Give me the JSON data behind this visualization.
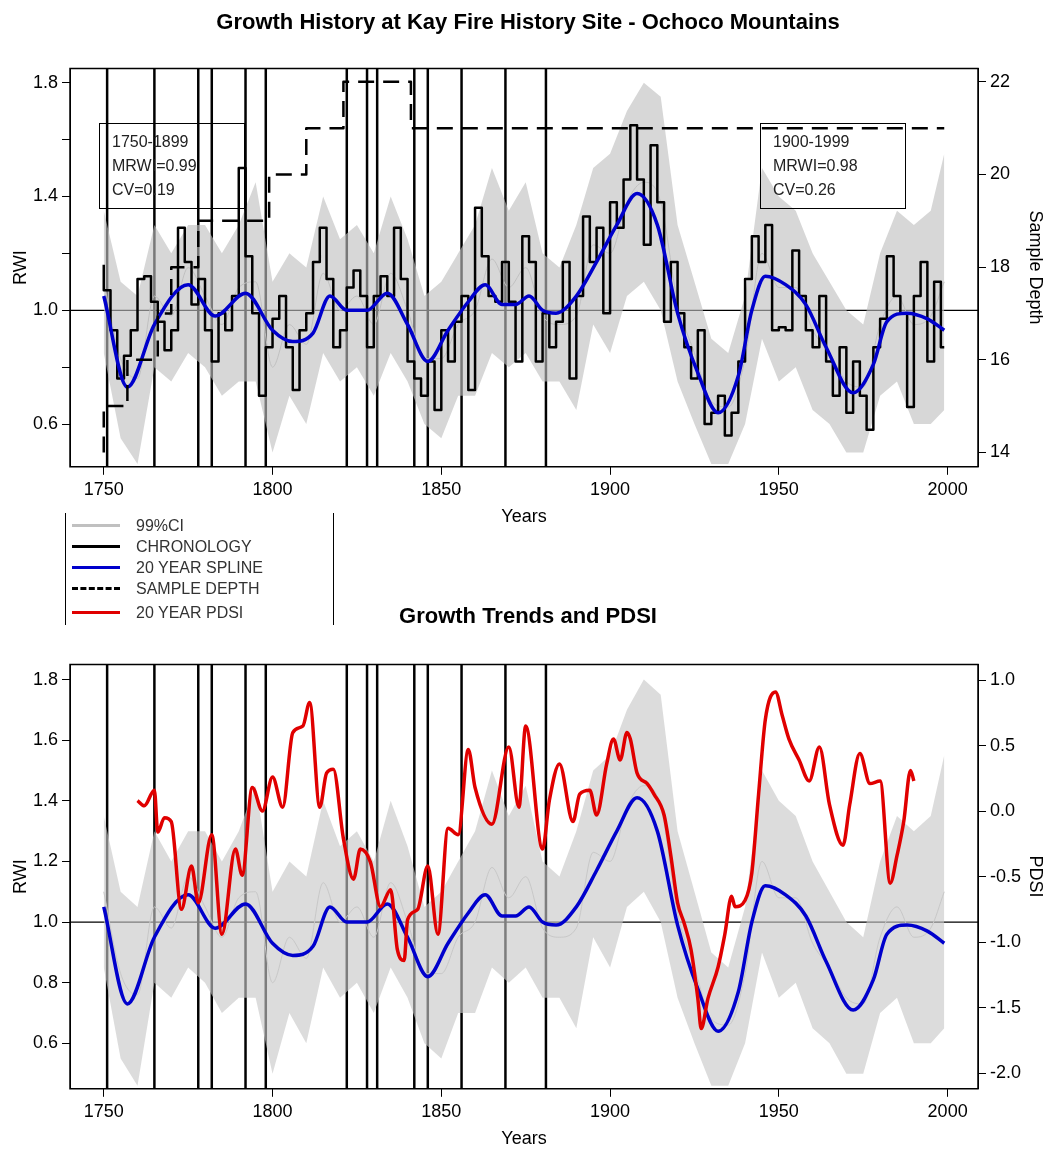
{
  "chart_data": [
    {
      "type": "line",
      "title": "Growth History at Kay Fire History Site - Ochoco Mountains",
      "xlabel": "Years",
      "ylabel": "RWI",
      "y2label": "Sample Depth",
      "annotations": [
        "1750-1899\nMRWI=0.99\nCV=0.19",
        "1900-1999\nMRWI=0.98\nCV=0.26"
      ],
      "xlim": [
        1740,
        2009
      ],
      "xticks": [
        1750,
        1800,
        1850,
        1900,
        1950,
        2000
      ],
      "ylim": [
        0.45,
        1.85
      ],
      "yticks": [
        0.6,
        {
          "value": 0.8,
          "label": null
        },
        {
          "value": 1,
          "label": "1.0"
        },
        {
          "value": 1.2,
          "label": null
        },
        1.4,
        {
          "value": 1.6,
          "label": null
        },
        1.8
      ],
      "y2lim": [
        13.69,
        22.29
      ],
      "y2ticks": [
        14,
        16,
        18,
        20,
        22
      ],
      "legend": "bottom left",
      "ref_lines": [
        {
          "axis": "y",
          "value": 1
        },
        {
          "axis": "x",
          "value": 1751
        },
        {
          "axis": "x",
          "value": 1765
        },
        {
          "axis": "x",
          "value": 1778
        },
        {
          "axis": "x",
          "value": 1782
        },
        {
          "axis": "x",
          "value": 1792
        },
        {
          "axis": "x",
          "value": 1798
        },
        {
          "axis": "x",
          "value": 1822
        },
        {
          "axis": "x",
          "value": 1828
        },
        {
          "axis": "x",
          "value": 1831
        },
        {
          "axis": "x",
          "value": 1842
        },
        {
          "axis": "x",
          "value": 1846
        },
        {
          "axis": "x",
          "value": 1856
        },
        {
          "axis": "x",
          "value": 1869
        },
        {
          "axis": "x",
          "value": 1881
        }
      ],
      "series": [
        {
          "name": "99%CI",
          "color": "#c0c0c0",
          "x": [
            1750,
            1755,
            1760,
            1765,
            1770,
            1775,
            1780,
            1785,
            1790,
            1795,
            1800,
            1805,
            1810,
            1815,
            1820,
            1825,
            1830,
            1835,
            1840,
            1845,
            1850,
            1855,
            1860,
            1865,
            1870,
            1875,
            1880,
            1885,
            1890,
            1895,
            1900,
            1905,
            1910,
            1915,
            1920,
            1925,
            1930,
            1935,
            1940,
            1945,
            1950,
            1955,
            1960,
            1965,
            1970,
            1975,
            1980,
            1985,
            1990,
            1995,
            1999
          ],
          "values": [
            1.1,
            0.83,
            0.76,
            1.05,
            0.98,
            1.15,
            1.05,
            0.95,
            1.08,
            1.1,
            0.8,
            0.95,
            0.88,
            1.13,
            1.0,
            1.05,
            0.95,
            1.13,
            1.0,
            0.83,
            0.83,
            0.95,
            1.0,
            1.18,
            1.08,
            1.15,
            0.98,
            0.95,
            0.98,
            1.23,
            1.2,
            1.38,
            1.45,
            1.38,
            1.03,
            0.85,
            0.68,
            0.66,
            0.83,
            1.2,
            1.08,
            1.08,
            0.93,
            0.85,
            0.75,
            0.73,
            0.95,
            1.05,
            0.95,
            0.98,
            1.1
          ],
          "lower": [
            0.85,
            0.55,
            0.46,
            0.8,
            0.75,
            0.85,
            0.8,
            0.7,
            0.75,
            0.75,
            0.5,
            0.7,
            0.6,
            0.85,
            0.75,
            0.8,
            0.7,
            0.85,
            0.75,
            0.6,
            0.55,
            0.7,
            0.7,
            0.85,
            0.8,
            0.85,
            0.75,
            0.75,
            0.65,
            0.95,
            0.85,
            1.05,
            1.1,
            1.0,
            0.75,
            0.6,
            0.46,
            0.46,
            0.6,
            0.9,
            0.75,
            0.8,
            0.65,
            0.6,
            0.5,
            0.5,
            0.7,
            0.75,
            0.6,
            0.6,
            0.65
          ],
          "upper": [
            1.35,
            1.1,
            1.05,
            1.3,
            1.2,
            1.3,
            1.3,
            1.2,
            1.3,
            1.45,
            1.1,
            1.2,
            1.15,
            1.4,
            1.25,
            1.3,
            1.2,
            1.4,
            1.25,
            1.05,
            1.1,
            1.2,
            1.3,
            1.5,
            1.35,
            1.45,
            1.2,
            1.15,
            1.3,
            1.5,
            1.55,
            1.7,
            1.8,
            1.75,
            1.3,
            1.1,
            0.9,
            0.85,
            1.05,
            1.5,
            1.4,
            1.35,
            1.2,
            1.1,
            1.0,
            0.95,
            1.2,
            1.35,
            1.3,
            1.35,
            1.55
          ]
        },
        {
          "name": "CHRONOLOGY",
          "type": "step",
          "color": "#000000",
          "x": [
            1750,
            1752,
            1754,
            1756,
            1758,
            1760,
            1762,
            1764,
            1766,
            1768,
            1770,
            1772,
            1774,
            1776,
            1778,
            1780,
            1782,
            1784,
            1786,
            1788,
            1790,
            1792,
            1794,
            1796,
            1798,
            1800,
            1802,
            1804,
            1806,
            1808,
            1810,
            1812,
            1814,
            1816,
            1818,
            1820,
            1822,
            1824,
            1826,
            1828,
            1830,
            1832,
            1834,
            1836,
            1838,
            1840,
            1842,
            1844,
            1846,
            1848,
            1850,
            1852,
            1854,
            1856,
            1858,
            1860,
            1862,
            1864,
            1866,
            1868,
            1870,
            1872,
            1874,
            1876,
            1878,
            1880,
            1882,
            1884,
            1886,
            1888,
            1890,
            1892,
            1894,
            1896,
            1898,
            1900,
            1902,
            1904,
            1906,
            1908,
            1910,
            1912,
            1914,
            1916,
            1918,
            1920,
            1922,
            1924,
            1926,
            1928,
            1930,
            1932,
            1934,
            1936,
            1938,
            1940,
            1942,
            1944,
            1946,
            1948,
            1950,
            1952,
            1954,
            1956,
            1958,
            1960,
            1962,
            1964,
            1966,
            1968,
            1970,
            1972,
            1974,
            1976,
            1978,
            1980,
            1982,
            1984,
            1986,
            1988,
            1990,
            1992,
            1994,
            1996,
            1998,
            1999
          ],
          "values": [
            1.16,
            1.07,
            0.93,
            0.76,
            0.84,
            0.93,
            1.11,
            1.12,
            1.03,
            0.96,
            0.86,
            0.93,
            1.29,
            1.17,
            1.02,
            1.11,
            0.93,
            0.82,
            0.99,
            0.93,
            1.05,
            1.5,
            1.19,
            0.99,
            0.7,
            0.87,
            0.97,
            1.05,
            0.87,
            0.72,
            0.93,
            0.99,
            1.17,
            1.29,
            1.11,
            0.87,
            0.93,
            1.08,
            1.14,
            1.05,
            0.87,
            1.05,
            1.12,
            1.05,
            1.29,
            1.11,
            0.82,
            0.76,
            0.7,
            0.82,
            0.65,
            0.93,
            0.82,
            0.96,
            1.05,
            0.72,
            1.36,
            1.19,
            1.05,
            1.03,
            1.17,
            1.03,
            0.82,
            1.26,
            1.17,
            0.82,
            0.99,
            0.87,
            0.96,
            1.17,
            0.76,
            1.05,
            1.33,
            1.17,
            1.29,
            0.99,
            1.38,
            1.29,
            1.46,
            1.65,
            1.46,
            1.23,
            1.58,
            1.38,
            0.96,
            1.17,
            0.99,
            0.87,
            0.76,
            0.93,
            0.6,
            0.64,
            0.7,
            0.56,
            0.64,
            0.82,
            1.11,
            1.26,
            1.17,
            1.3,
            0.93,
            0.94,
            0.93,
            1.21,
            1.05,
            0.93,
            0.87,
            1.05,
            0.82,
            0.7,
            0.87,
            0.64,
            0.82,
            0.7,
            0.58,
            0.87,
            0.97,
            1.19,
            1.05,
            0.99,
            0.66,
            1.05,
            1.17,
            0.82,
            1.1,
            0.87
          ]
        },
        {
          "name": "20 YEAR SPLINE",
          "color": "#0000cc",
          "x": [
            1750,
            1757,
            1765,
            1775,
            1783,
            1792,
            1800,
            1806,
            1812,
            1817,
            1822,
            1828,
            1834,
            1840,
            1846,
            1852,
            1858,
            1863,
            1868,
            1872,
            1876,
            1880,
            1884,
            1890,
            1896,
            1902,
            1908,
            1914,
            1920,
            1926,
            1932,
            1938,
            1942,
            1946,
            1952,
            1958,
            1964,
            1972,
            1978,
            1982,
            1988,
            1994,
            1999
          ],
          "values": [
            1.05,
            0.73,
            0.95,
            1.09,
            0.98,
            1.06,
            0.93,
            0.89,
            0.92,
            1.05,
            1.0,
            1.0,
            1.06,
            0.95,
            0.82,
            0.93,
            1.03,
            1.09,
            1.02,
            1.02,
            1.05,
            1.0,
            0.99,
            1.05,
            1.17,
            1.3,
            1.41,
            1.3,
            0.99,
            0.78,
            0.64,
            0.77,
            1.0,
            1.12,
            1.09,
            1.02,
            0.87,
            0.71,
            0.81,
            0.96,
            0.99,
            0.97,
            0.93
          ]
        },
        {
          "name": "SAMPLE DEPTH",
          "type": "step",
          "axis": "y2",
          "line_style": "dashed",
          "color": "#000000",
          "x": [
            1750,
            1757,
            1766,
            1770,
            1778,
            1799,
            1810,
            1821,
            1841,
            1990,
            1999
          ],
          "values": [
            14,
            15,
            16,
            17,
            18,
            19,
            20,
            21,
            22,
            21,
            21
          ]
        }
      ]
    },
    {
      "type": "line",
      "title": "Growth Trends and PDSI",
      "xlabel": "Years",
      "ylabel": "RWI",
      "y2label": "PDSI",
      "xlim": [
        1740,
        2009
      ],
      "xticks": [
        1750,
        1800,
        1850,
        1900,
        1950,
        2000
      ],
      "ylim": [
        0.45,
        1.85
      ],
      "yticks": [
        0.6,
        0.8,
        {
          "value": 1,
          "label": "1.0"
        },
        1.2,
        1.4,
        1.6,
        1.8
      ],
      "y2lim": [
        -2.12,
        1.12
      ],
      "y2ticks": [
        {
          "value": -2,
          "label": "-2.0"
        },
        -1.5,
        {
          "value": -1,
          "label": "-1.0"
        },
        -0.5,
        {
          "value": 0,
          "label": "0.0"
        },
        0.5,
        {
          "value": 1,
          "label": "1.0"
        }
      ],
      "legend": "top left",
      "ref_lines": [
        {
          "axis": "y",
          "value": 1
        },
        {
          "axis": "x",
          "value": 1751
        },
        {
          "axis": "x",
          "value": 1765
        },
        {
          "axis": "x",
          "value": 1778
        },
        {
          "axis": "x",
          "value": 1782
        },
        {
          "axis": "x",
          "value": 1792
        },
        {
          "axis": "x",
          "value": 1798
        },
        {
          "axis": "x",
          "value": 1822
        },
        {
          "axis": "x",
          "value": 1828
        },
        {
          "axis": "x",
          "value": 1831
        },
        {
          "axis": "x",
          "value": 1842
        },
        {
          "axis": "x",
          "value": 1846
        },
        {
          "axis": "x",
          "value": 1856
        },
        {
          "axis": "x",
          "value": 1869
        },
        {
          "axis": "x",
          "value": 1881
        }
      ],
      "series": [
        {
          "color": "#c8c8c8",
          "x": [
            1750,
            1755,
            1760,
            1765,
            1770,
            1775,
            1780,
            1785,
            1790,
            1795,
            1800,
            1805,
            1810,
            1815,
            1820,
            1825,
            1830,
            1835,
            1840,
            1845,
            1850,
            1855,
            1860,
            1865,
            1870,
            1875,
            1880,
            1885,
            1890,
            1895,
            1900,
            1905,
            1910,
            1915,
            1920,
            1925,
            1930,
            1935,
            1940,
            1945,
            1950,
            1955,
            1960,
            1965,
            1970,
            1975,
            1980,
            1985,
            1990,
            1995,
            1999
          ],
          "values": [
            1.1,
            0.83,
            0.76,
            1.05,
            0.98,
            1.15,
            1.05,
            0.95,
            1.08,
            1.1,
            0.8,
            0.95,
            0.88,
            1.13,
            1.0,
            1.05,
            0.95,
            1.13,
            1.0,
            0.83,
            0.83,
            0.95,
            1.0,
            1.18,
            1.08,
            1.15,
            0.98,
            0.95,
            0.98,
            1.23,
            1.2,
            1.38,
            1.45,
            1.38,
            1.03,
            0.85,
            0.68,
            0.66,
            0.83,
            1.2,
            1.08,
            1.08,
            0.93,
            0.85,
            0.75,
            0.73,
            0.95,
            1.05,
            0.95,
            0.98,
            1.1
          ],
          "lower": [
            0.85,
            0.55,
            0.46,
            0.8,
            0.75,
            0.85,
            0.8,
            0.7,
            0.75,
            0.75,
            0.5,
            0.7,
            0.6,
            0.85,
            0.75,
            0.8,
            0.7,
            0.85,
            0.75,
            0.6,
            0.55,
            0.7,
            0.7,
            0.85,
            0.8,
            0.85,
            0.75,
            0.75,
            0.65,
            0.95,
            0.85,
            1.05,
            1.1,
            1.0,
            0.75,
            0.6,
            0.46,
            0.46,
            0.6,
            0.9,
            0.75,
            0.8,
            0.65,
            0.6,
            0.5,
            0.5,
            0.7,
            0.75,
            0.6,
            0.6,
            0.65
          ],
          "upper": [
            1.35,
            1.1,
            1.05,
            1.3,
            1.2,
            1.3,
            1.3,
            1.2,
            1.3,
            1.45,
            1.1,
            1.2,
            1.15,
            1.4,
            1.25,
            1.3,
            1.2,
            1.4,
            1.25,
            1.05,
            1.1,
            1.2,
            1.3,
            1.5,
            1.35,
            1.45,
            1.2,
            1.15,
            1.3,
            1.5,
            1.55,
            1.7,
            1.8,
            1.75,
            1.3,
            1.1,
            0.9,
            0.85,
            1.05,
            1.5,
            1.4,
            1.35,
            1.2,
            1.1,
            1.0,
            0.95,
            1.2,
            1.35,
            1.3,
            1.35,
            1.55
          ]
        },
        {
          "color": "#0000cc",
          "x": [
            1750,
            1757,
            1765,
            1775,
            1783,
            1792,
            1800,
            1806,
            1812,
            1817,
            1822,
            1828,
            1834,
            1840,
            1846,
            1852,
            1858,
            1863,
            1868,
            1872,
            1876,
            1880,
            1884,
            1890,
            1896,
            1902,
            1908,
            1914,
            1920,
            1926,
            1932,
            1938,
            1942,
            1946,
            1952,
            1958,
            1964,
            1972,
            1978,
            1982,
            1988,
            1994,
            1999
          ],
          "values": [
            1.05,
            0.73,
            0.95,
            1.09,
            0.98,
            1.06,
            0.93,
            0.89,
            0.92,
            1.05,
            1.0,
            1.0,
            1.06,
            0.95,
            0.82,
            0.93,
            1.03,
            1.09,
            1.02,
            1.02,
            1.05,
            1.0,
            0.99,
            1.05,
            1.17,
            1.3,
            1.41,
            1.3,
            0.99,
            0.78,
            0.64,
            0.77,
            1.0,
            1.12,
            1.09,
            1.02,
            0.87,
            0.71,
            0.81,
            0.96,
            0.99,
            0.97,
            0.93
          ]
        },
        {
          "name": "20 YEAR PDSI",
          "color": "#e00000",
          "axis": "y2",
          "x": [
            1760,
            1762,
            1765,
            1766,
            1768,
            1770,
            1773,
            1776,
            1778,
            1782,
            1785,
            1789,
            1791,
            1794,
            1797,
            1800,
            1803,
            1806,
            1809,
            1811,
            1814,
            1816,
            1818,
            1821,
            1824,
            1826,
            1829,
            1832,
            1835,
            1837,
            1839,
            1840,
            1843,
            1846,
            1849,
            1852,
            1855,
            1858,
            1860,
            1865,
            1870,
            1873,
            1875,
            1880,
            1882,
            1885,
            1889,
            1891,
            1894,
            1896,
            1899,
            1901,
            1903,
            1905,
            1906,
            1908,
            1911,
            1913,
            1916,
            1918,
            1920,
            1922,
            1924,
            1926,
            1927,
            1929,
            1932,
            1934,
            1936,
            1937,
            1940,
            1942,
            1944,
            1946,
            1949,
            1951,
            1953,
            1956,
            1959,
            1962,
            1965,
            1969,
            1971,
            1974,
            1977,
            1980,
            1983,
            1985,
            1987,
            1989,
            1990
          ],
          "values": [
            0.08,
            0.04,
            0.16,
            -0.16,
            -0.05,
            -0.08,
            -0.75,
            -0.42,
            -0.7,
            -0.18,
            -0.94,
            -0.29,
            -0.49,
            0.18,
            0.0,
            0.26,
            0.03,
            0.6,
            0.65,
            0.83,
            0.03,
            0.29,
            0.32,
            -0.21,
            -0.52,
            -0.29,
            -0.39,
            -0.73,
            -0.6,
            -1.06,
            -1.14,
            -0.83,
            -0.75,
            -0.42,
            -0.94,
            -0.13,
            -0.18,
            0.47,
            0.18,
            -0.1,
            0.49,
            0.03,
            0.65,
            -0.29,
            0.08,
            0.36,
            -0.08,
            0.13,
            0.16,
            -0.03,
            0.36,
            0.55,
            0.39,
            0.6,
            0.55,
            0.29,
            0.21,
            0.13,
            -0.03,
            -0.34,
            -0.7,
            -0.86,
            -1.06,
            -1.43,
            -1.66,
            -1.43,
            -1.19,
            -0.94,
            -0.65,
            -0.73,
            -0.68,
            -0.47,
            0.13,
            0.7,
            0.91,
            0.73,
            0.55,
            0.39,
            0.23,
            0.49,
            0.05,
            -0.26,
            0.05,
            0.44,
            0.21,
            0.23,
            -0.55,
            -0.34,
            -0.08,
            0.31,
            0.23
          ]
        }
      ]
    }
  ]
}
